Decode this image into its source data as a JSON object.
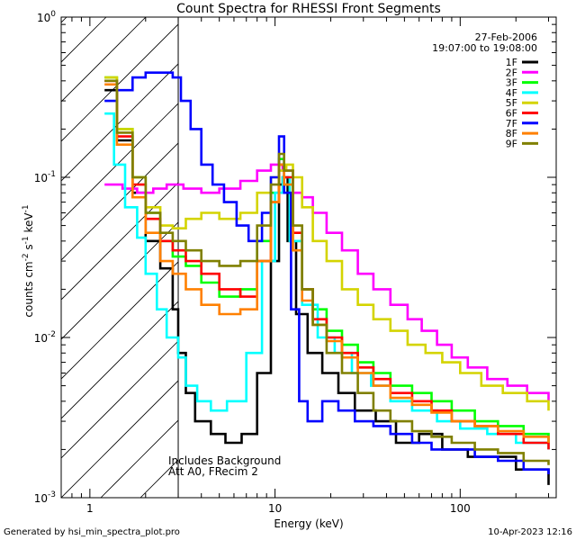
{
  "chart_data": {
    "type": "line",
    "title": "Count Spectra for RHESSI Front Segments",
    "xlabel": "Energy (keV)",
    "ylabel_parts": [
      "counts cm",
      "-2",
      " s",
      "-1",
      " keV",
      "-1"
    ],
    "x_scale": "log",
    "y_scale": "log",
    "xlim": [
      0.7,
      330
    ],
    "ylim": [
      0.001,
      1
    ],
    "x_ticks": [
      {
        "v": 1,
        "label": "1"
      },
      {
        "v": 10,
        "label": "10"
      },
      {
        "v": 100,
        "label": "100"
      }
    ],
    "y_ticks": [
      {
        "v": 1,
        "base": "10",
        "exp": "0"
      },
      {
        "v": 0.1,
        "base": "10",
        "exp": "-1"
      },
      {
        "v": 0.01,
        "base": "10",
        "exp": "-2"
      },
      {
        "v": 0.001,
        "base": "10",
        "exp": "-3"
      }
    ],
    "shaded_region": {
      "x_max": 3,
      "hatch": "diagonal"
    },
    "date": "27-Feb-2006",
    "time_range": "19:07:00 to 19:08:00",
    "annotations": [
      "Includes Background",
      "Att A0, FRecim 2"
    ],
    "footer_left": "Generated by hsi_min_spectra_plot.pro",
    "footer_right": "10-Apr-2023 12:16",
    "series": [
      {
        "name": "1F",
        "color": "#000000",
        "points": [
          [
            1.2,
            0.35
          ],
          [
            1.4,
            0.17
          ],
          [
            1.7,
            0.08
          ],
          [
            2.0,
            0.04
          ],
          [
            2.4,
            0.027
          ],
          [
            2.8,
            0.015
          ],
          [
            3.0,
            0.008
          ],
          [
            3.3,
            0.0045
          ],
          [
            3.7,
            0.003
          ],
          [
            4.5,
            0.0025
          ],
          [
            5.4,
            0.0022
          ],
          [
            6.6,
            0.0025
          ],
          [
            8,
            0.006
          ],
          [
            9.5,
            0.03
          ],
          [
            10.5,
            0.09
          ],
          [
            11,
            0.1
          ],
          [
            11.7,
            0.04
          ],
          [
            13,
            0.014
          ],
          [
            15,
            0.008
          ],
          [
            18,
            0.006
          ],
          [
            22,
            0.0045
          ],
          [
            27,
            0.0035
          ],
          [
            35,
            0.003
          ],
          [
            45,
            0.0022
          ],
          [
            60,
            0.0025
          ],
          [
            80,
            0.002
          ],
          [
            110,
            0.0018
          ],
          [
            150,
            0.0018
          ],
          [
            200,
            0.0015
          ],
          [
            300,
            0.0012
          ]
        ]
      },
      {
        "name": "2F",
        "color": "#ff00ff",
        "points": [
          [
            1.2,
            0.09
          ],
          [
            1.5,
            0.085
          ],
          [
            1.8,
            0.08
          ],
          [
            2.2,
            0.085
          ],
          [
            2.6,
            0.09
          ],
          [
            3.2,
            0.085
          ],
          [
            4,
            0.08
          ],
          [
            5,
            0.085
          ],
          [
            6.5,
            0.095
          ],
          [
            8,
            0.11
          ],
          [
            9.5,
            0.12
          ],
          [
            11,
            0.11
          ],
          [
            12.5,
            0.08
          ],
          [
            14,
            0.075
          ],
          [
            16,
            0.06
          ],
          [
            19,
            0.045
          ],
          [
            23,
            0.035
          ],
          [
            28,
            0.025
          ],
          [
            34,
            0.02
          ],
          [
            42,
            0.016
          ],
          [
            52,
            0.013
          ],
          [
            62,
            0.011
          ],
          [
            75,
            0.009
          ],
          [
            90,
            0.0075
          ],
          [
            110,
            0.0065
          ],
          [
            140,
            0.0055
          ],
          [
            180,
            0.005
          ],
          [
            230,
            0.0045
          ],
          [
            300,
            0.004
          ]
        ]
      },
      {
        "name": "3F",
        "color": "#00ff00",
        "points": [
          [
            1.2,
            0.42
          ],
          [
            1.4,
            0.2
          ],
          [
            1.7,
            0.1
          ],
          [
            2.0,
            0.06
          ],
          [
            2.4,
            0.04
          ],
          [
            2.8,
            0.032
          ],
          [
            3.3,
            0.028
          ],
          [
            4,
            0.022
          ],
          [
            5,
            0.018
          ],
          [
            6.5,
            0.02
          ],
          [
            8,
            0.04
          ],
          [
            9.5,
            0.08
          ],
          [
            10.5,
            0.13
          ],
          [
            11.2,
            0.09
          ],
          [
            12.5,
            0.04
          ],
          [
            14,
            0.02
          ],
          [
            16,
            0.015
          ],
          [
            19,
            0.011
          ],
          [
            23,
            0.009
          ],
          [
            28,
            0.007
          ],
          [
            34,
            0.006
          ],
          [
            42,
            0.005
          ],
          [
            55,
            0.0045
          ],
          [
            70,
            0.004
          ],
          [
            90,
            0.0035
          ],
          [
            120,
            0.003
          ],
          [
            160,
            0.0028
          ],
          [
            220,
            0.0025
          ],
          [
            300,
            0.0022
          ]
        ]
      },
      {
        "name": "4F",
        "color": "#00ffff",
        "points": [
          [
            1.2,
            0.25
          ],
          [
            1.35,
            0.12
          ],
          [
            1.55,
            0.065
          ],
          [
            1.8,
            0.042
          ],
          [
            2.0,
            0.025
          ],
          [
            2.3,
            0.015
          ],
          [
            2.6,
            0.01
          ],
          [
            3.0,
            0.0075
          ],
          [
            3.3,
            0.005
          ],
          [
            3.8,
            0.004
          ],
          [
            4.5,
            0.0035
          ],
          [
            5.5,
            0.004
          ],
          [
            7,
            0.008
          ],
          [
            8.5,
            0.03
          ],
          [
            10,
            0.08
          ],
          [
            11,
            0.1
          ],
          [
            12,
            0.04
          ],
          [
            14,
            0.016
          ],
          [
            17,
            0.01
          ],
          [
            21,
            0.008
          ],
          [
            26,
            0.006
          ],
          [
            33,
            0.005
          ],
          [
            42,
            0.004
          ],
          [
            55,
            0.0035
          ],
          [
            75,
            0.003
          ],
          [
            100,
            0.0027
          ],
          [
            140,
            0.0025
          ],
          [
            200,
            0.0022
          ],
          [
            300,
            0.002
          ]
        ]
      },
      {
        "name": "5F",
        "color": "#d4d400",
        "points": [
          [
            1.2,
            0.42
          ],
          [
            1.4,
            0.2
          ],
          [
            1.7,
            0.1
          ],
          [
            2.0,
            0.065
          ],
          [
            2.4,
            0.05
          ],
          [
            2.8,
            0.048
          ],
          [
            3.3,
            0.055
          ],
          [
            4,
            0.06
          ],
          [
            5,
            0.055
          ],
          [
            6.5,
            0.06
          ],
          [
            8,
            0.08
          ],
          [
            9.5,
            0.1
          ],
          [
            10.5,
            0.11
          ],
          [
            11.5,
            0.12
          ],
          [
            12.5,
            0.1
          ],
          [
            14,
            0.065
          ],
          [
            16,
            0.04
          ],
          [
            19,
            0.03
          ],
          [
            23,
            0.02
          ],
          [
            28,
            0.016
          ],
          [
            34,
            0.013
          ],
          [
            42,
            0.011
          ],
          [
            52,
            0.009
          ],
          [
            65,
            0.008
          ],
          [
            80,
            0.007
          ],
          [
            100,
            0.006
          ],
          [
            130,
            0.005
          ],
          [
            170,
            0.0045
          ],
          [
            230,
            0.004
          ],
          [
            300,
            0.0035
          ]
        ]
      },
      {
        "name": "6F",
        "color": "#ff0000",
        "points": [
          [
            1.2,
            0.4
          ],
          [
            1.4,
            0.18
          ],
          [
            1.7,
            0.09
          ],
          [
            2.0,
            0.055
          ],
          [
            2.4,
            0.04
          ],
          [
            2.8,
            0.035
          ],
          [
            3.3,
            0.03
          ],
          [
            4,
            0.025
          ],
          [
            5,
            0.02
          ],
          [
            6.5,
            0.018
          ],
          [
            8,
            0.03
          ],
          [
            9.5,
            0.07
          ],
          [
            10.5,
            0.12
          ],
          [
            11.2,
            0.1
          ],
          [
            12.5,
            0.045
          ],
          [
            14,
            0.02
          ],
          [
            16,
            0.013
          ],
          [
            19,
            0.01
          ],
          [
            23,
            0.008
          ],
          [
            28,
            0.0065
          ],
          [
            34,
            0.0055
          ],
          [
            42,
            0.0045
          ],
          [
            55,
            0.004
          ],
          [
            70,
            0.0035
          ],
          [
            90,
            0.003
          ],
          [
            120,
            0.0028
          ],
          [
            160,
            0.0025
          ],
          [
            220,
            0.0022
          ],
          [
            300,
            0.002
          ]
        ]
      },
      {
        "name": "7F",
        "color": "#0000ff",
        "points": [
          [
            1.2,
            0.3
          ],
          [
            1.4,
            0.35
          ],
          [
            1.7,
            0.42
          ],
          [
            2.0,
            0.45
          ],
          [
            2.4,
            0.45
          ],
          [
            2.8,
            0.42
          ],
          [
            3.1,
            0.3
          ],
          [
            3.5,
            0.2
          ],
          [
            4,
            0.12
          ],
          [
            4.6,
            0.09
          ],
          [
            5.3,
            0.07
          ],
          [
            6.2,
            0.05
          ],
          [
            7.2,
            0.04
          ],
          [
            8.5,
            0.06
          ],
          [
            9.5,
            0.1
          ],
          [
            10.5,
            0.18
          ],
          [
            11.2,
            0.08
          ],
          [
            12.2,
            0.015
          ],
          [
            13.5,
            0.004
          ],
          [
            15,
            0.003
          ],
          [
            18,
            0.004
          ],
          [
            22,
            0.0035
          ],
          [
            27,
            0.003
          ],
          [
            34,
            0.0028
          ],
          [
            42,
            0.0025
          ],
          [
            55,
            0.0022
          ],
          [
            70,
            0.002
          ],
          [
            90,
            0.002
          ],
          [
            120,
            0.0018
          ],
          [
            160,
            0.0017
          ],
          [
            220,
            0.0015
          ],
          [
            300,
            0.0014
          ]
        ]
      },
      {
        "name": "8F",
        "color": "#ff8000",
        "points": [
          [
            1.2,
            0.38
          ],
          [
            1.4,
            0.16
          ],
          [
            1.7,
            0.075
          ],
          [
            2.0,
            0.045
          ],
          [
            2.4,
            0.03
          ],
          [
            2.8,
            0.025
          ],
          [
            3.3,
            0.02
          ],
          [
            4,
            0.016
          ],
          [
            5,
            0.014
          ],
          [
            6.5,
            0.015
          ],
          [
            8,
            0.03
          ],
          [
            9.5,
            0.07
          ],
          [
            10.5,
            0.12
          ],
          [
            11.2,
            0.09
          ],
          [
            12.5,
            0.035
          ],
          [
            14,
            0.017
          ],
          [
            16,
            0.012
          ],
          [
            19,
            0.0095
          ],
          [
            23,
            0.0075
          ],
          [
            28,
            0.006
          ],
          [
            34,
            0.005
          ],
          [
            42,
            0.0042
          ],
          [
            55,
            0.0038
          ],
          [
            70,
            0.0034
          ],
          [
            90,
            0.003
          ],
          [
            120,
            0.0028
          ],
          [
            160,
            0.0026
          ],
          [
            220,
            0.0024
          ],
          [
            300,
            0.0022
          ]
        ]
      },
      {
        "name": "9F",
        "color": "#808000",
        "points": [
          [
            1.2,
            0.4
          ],
          [
            1.4,
            0.19
          ],
          [
            1.7,
            0.1
          ],
          [
            2.0,
            0.06
          ],
          [
            2.4,
            0.045
          ],
          [
            2.8,
            0.04
          ],
          [
            3.3,
            0.035
          ],
          [
            4,
            0.03
          ],
          [
            5,
            0.028
          ],
          [
            6.5,
            0.03
          ],
          [
            8,
            0.05
          ],
          [
            9.5,
            0.09
          ],
          [
            10.5,
            0.14
          ],
          [
            11.2,
            0.11
          ],
          [
            12.5,
            0.05
          ],
          [
            14,
            0.02
          ],
          [
            16,
            0.012
          ],
          [
            19,
            0.008
          ],
          [
            23,
            0.006
          ],
          [
            28,
            0.0045
          ],
          [
            34,
            0.0035
          ],
          [
            42,
            0.003
          ],
          [
            55,
            0.0026
          ],
          [
            70,
            0.0024
          ],
          [
            90,
            0.0022
          ],
          [
            120,
            0.002
          ],
          [
            160,
            0.0019
          ],
          [
            220,
            0.0017
          ],
          [
            300,
            0.0016
          ]
        ]
      }
    ]
  }
}
